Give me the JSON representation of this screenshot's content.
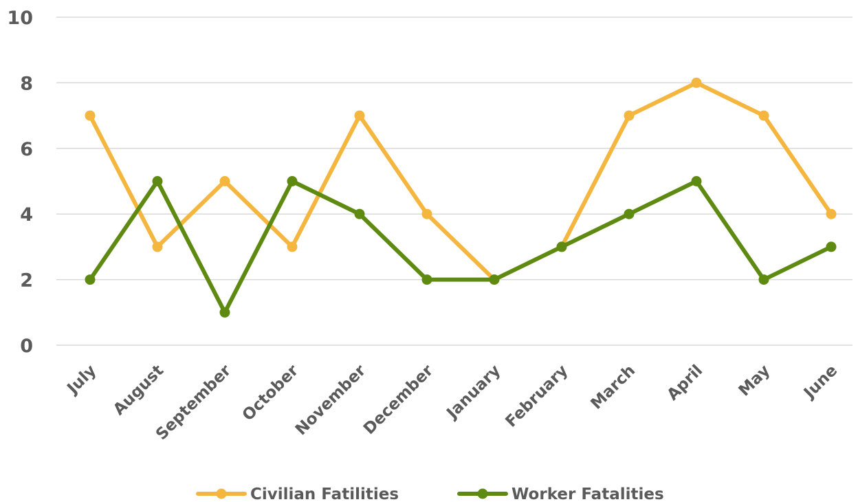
{
  "chart_data": {
    "type": "line",
    "categories": [
      "July",
      "August",
      "September",
      "October",
      "November",
      "December",
      "January",
      "February",
      "March",
      "April",
      "May",
      "June"
    ],
    "series": [
      {
        "name": "Civilian Fatilities",
        "values": [
          7,
          3,
          5,
          3,
          7,
          4,
          2,
          3,
          7,
          8,
          7,
          4
        ],
        "color": "#F5B63F"
      },
      {
        "name": "Worker Fatalities",
        "values": [
          2,
          5,
          1,
          5,
          4,
          2,
          2,
          3,
          4,
          5,
          2,
          3
        ],
        "color": "#5E8A12"
      }
    ],
    "ylim": [
      0,
      10
    ],
    "yticks": [
      0,
      2,
      4,
      6,
      8,
      10
    ],
    "grid": true,
    "legend": "bottom",
    "title": "",
    "xlabel": "",
    "ylabel": ""
  }
}
